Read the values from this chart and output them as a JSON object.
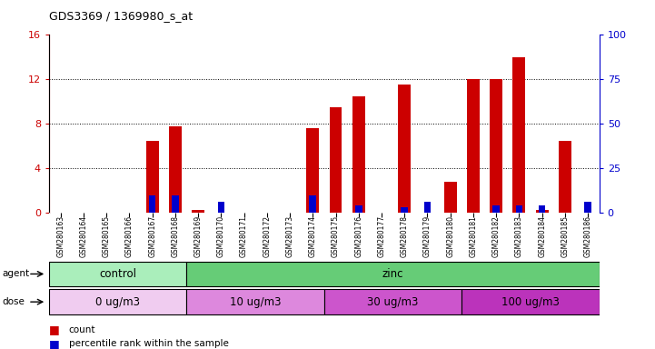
{
  "title": "GDS3369 / 1369980_s_at",
  "samples": [
    "GSM280163",
    "GSM280164",
    "GSM280165",
    "GSM280166",
    "GSM280167",
    "GSM280168",
    "GSM280169",
    "GSM280170",
    "GSM280171",
    "GSM280172",
    "GSM280173",
    "GSM280174",
    "GSM280175",
    "GSM280176",
    "GSM280177",
    "GSM280178",
    "GSM280179",
    "GSM280180",
    "GSM280181",
    "GSM280182",
    "GSM280183",
    "GSM280184",
    "GSM280185",
    "GSM280186"
  ],
  "counts": [
    0,
    0,
    0,
    0,
    6.5,
    7.8,
    0.3,
    0,
    0,
    0,
    0,
    7.6,
    9.5,
    10.5,
    0,
    11.5,
    0,
    2.8,
    12.0,
    12.0,
    14.0,
    0.3,
    6.5,
    0
  ],
  "percentiles": [
    0,
    0,
    0,
    0,
    10,
    10,
    0,
    6,
    0,
    0,
    0,
    10,
    0,
    4,
    0,
    3,
    6,
    0,
    0,
    4,
    4,
    4,
    0,
    6
  ],
  "count_color": "#cc0000",
  "percentile_color": "#0000cc",
  "ylim_left": [
    0,
    16
  ],
  "ylim_right": [
    0,
    100
  ],
  "yticks_left": [
    0,
    4,
    8,
    12,
    16
  ],
  "yticks_right": [
    0,
    25,
    50,
    75,
    100
  ],
  "agent_groups": [
    {
      "label": "control",
      "start": 0,
      "end": 5,
      "color": "#aaeebb"
    },
    {
      "label": "zinc",
      "start": 6,
      "end": 23,
      "color": "#66cc77"
    }
  ],
  "dose_groups": [
    {
      "label": "0 ug/m3",
      "start": 0,
      "end": 5,
      "color": "#f0ccf0"
    },
    {
      "label": "10 ug/m3",
      "start": 6,
      "end": 11,
      "color": "#dd88dd"
    },
    {
      "label": "30 ug/m3",
      "start": 12,
      "end": 17,
      "color": "#cc55cc"
    },
    {
      "label": "100 ug/m3",
      "start": 18,
      "end": 23,
      "color": "#bb33bb"
    }
  ],
  "legend_count_label": "count",
  "legend_percentile_label": "percentile rank within the sample",
  "bar_width": 0.55,
  "perc_bar_width": 0.3
}
